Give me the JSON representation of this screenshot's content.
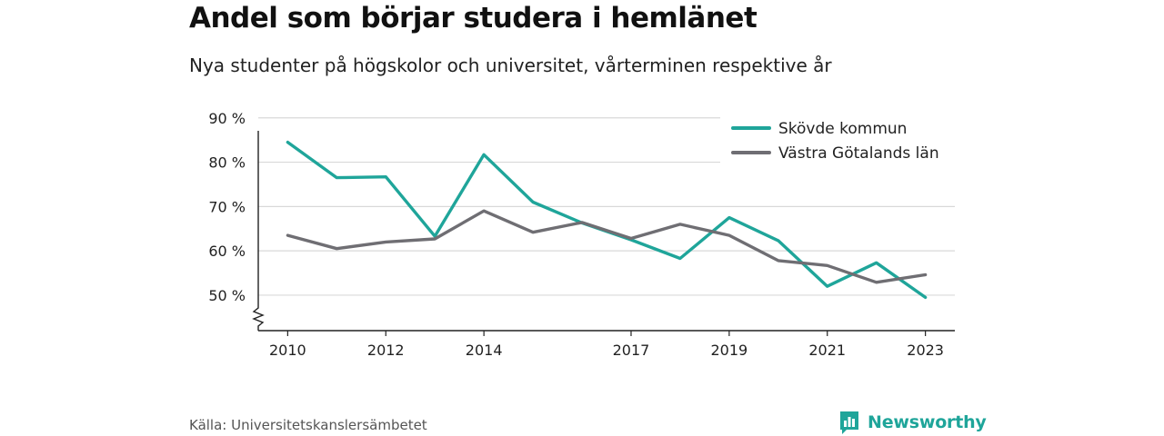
{
  "title": "Andel som börjar studera i hemlänet",
  "subtitle": "Nya studenter på högskolor och universitet, vårterminen respektive år",
  "source": "Källa: Universitetskanslersämbetet",
  "brand": {
    "name": "Newsworthy",
    "icon": "newsworthy-logo-icon",
    "color": "#1fa59a"
  },
  "chart_data": {
    "type": "line",
    "x": [
      2010,
      2011,
      2012,
      2013,
      2014,
      2015,
      2016,
      2017,
      2018,
      2019,
      2020,
      2021,
      2022,
      2023
    ],
    "x_ticks": [
      2010,
      2012,
      2014,
      2017,
      2019,
      2021,
      2023
    ],
    "y_ticks": [
      50,
      60,
      70,
      80,
      90
    ],
    "y_tick_suffix": " %",
    "ylim": [
      42,
      92
    ],
    "xlim": [
      2009.4,
      2023.6
    ],
    "axis_break": true,
    "grid": "horizontal",
    "legend_position": "top-right",
    "series": [
      {
        "name": "Skövde kommun",
        "color": "#1fa59a",
        "values": [
          84.5,
          76.5,
          76.7,
          63.3,
          81.7,
          71.0,
          66.3,
          62.5,
          58.3,
          67.5,
          62.3,
          52.0,
          57.3,
          49.5
        ]
      },
      {
        "name": "Västra Götalands län",
        "color": "#6f6e73",
        "values": [
          63.5,
          60.5,
          62.0,
          62.7,
          69.0,
          64.2,
          66.4,
          62.8,
          66.0,
          63.5,
          57.8,
          56.7,
          52.9,
          54.6
        ]
      }
    ]
  }
}
